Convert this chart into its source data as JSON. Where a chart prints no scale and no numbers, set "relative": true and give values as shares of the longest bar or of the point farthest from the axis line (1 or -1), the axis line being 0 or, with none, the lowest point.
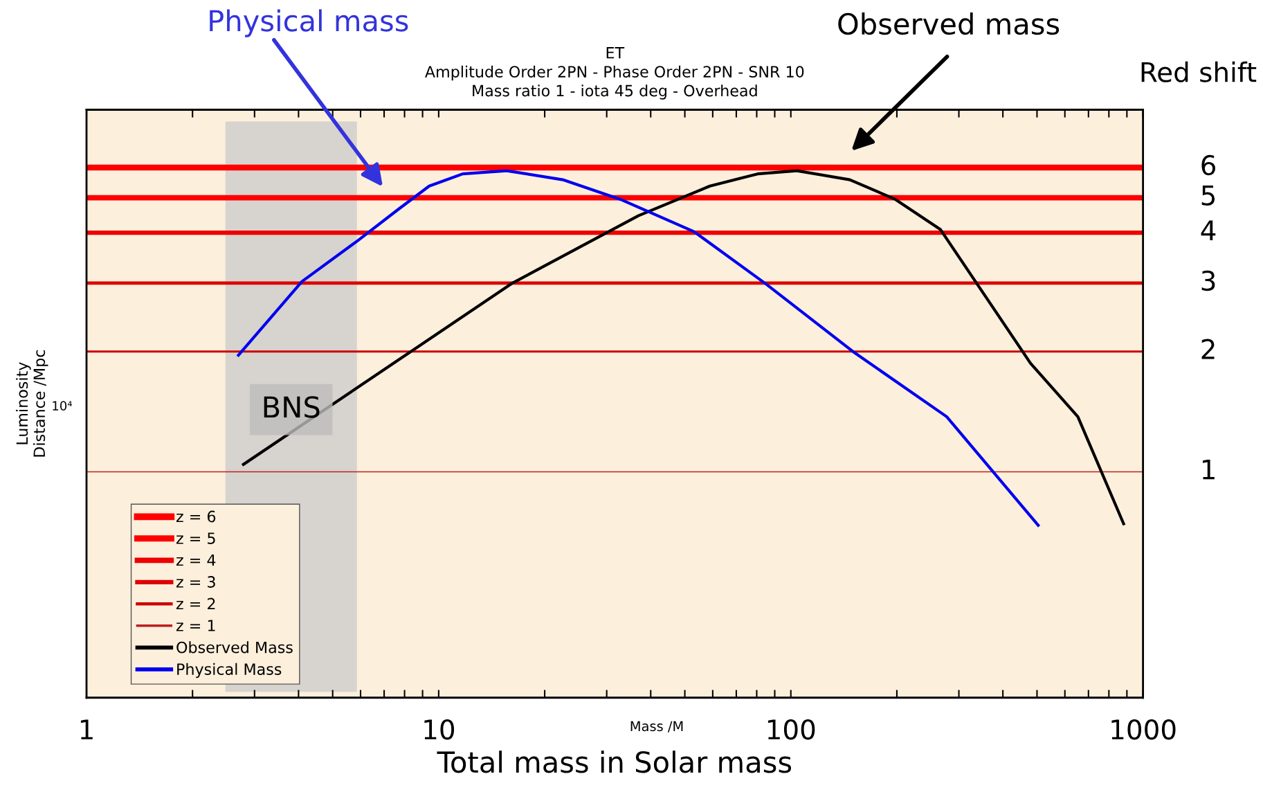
{
  "chart_data": {
    "type": "line",
    "relative": true,
    "title": "ET\nAmplitude Order 2PN - Phase Order 2PN - SNR 10\nMass ratio 1 - iota 45 deg - Overhead",
    "xlabel": "Total mass in Solar mass",
    "ylabel": "Luminosity\nDistance /Mpc",
    "y2label": "Red shift",
    "series": [
      {
        "name": "z = 6",
        "color": "#ff0000",
        "x": [
          1,
          1000
        ],
        "values": [
          1.0,
          1.0
        ]
      },
      {
        "name": "z = 5",
        "color": "#ff0000",
        "x": [
          1,
          1000
        ],
        "values": [
          0.943,
          0.943
        ]
      },
      {
        "name": "z = 4",
        "color": "#ee0000",
        "x": [
          1,
          1000
        ],
        "values": [
          0.877,
          0.877
        ]
      },
      {
        "name": "z = 3",
        "color": "#dd0000",
        "x": [
          1,
          1000
        ],
        "values": [
          0.782,
          0.782
        ]
      },
      {
        "name": "z = 2",
        "color": "#cc0000",
        "x": [
          1,
          1000
        ],
        "values": [
          0.653,
          0.653
        ]
      },
      {
        "name": "z = 1",
        "color": "#bb2020",
        "x": [
          1,
          1000
        ],
        "values": [
          0.426,
          0.426
        ]
      },
      {
        "name": "Observed Mass",
        "color": "#000000",
        "x": [
          2.79,
          8.05,
          16.1,
          36.9,
          58.9,
          80.5,
          104,
          147,
          198,
          266,
          479,
          653,
          881
        ],
        "values": [
          0.44,
          0.646,
          0.781,
          0.909,
          0.965,
          0.988,
          0.994,
          0.977,
          0.94,
          0.883,
          0.631,
          0.53,
          0.328
        ]
      },
      {
        "name": "Physical Mass",
        "color": "#0000ee",
        "x": [
          2.7,
          4.09,
          5.89,
          7.64,
          9.4,
          11.7,
          15.6,
          22.5,
          32.8,
          53.1,
          84.7,
          150,
          277,
          504
        ],
        "values": [
          0.646,
          0.785,
          0.862,
          0.92,
          0.965,
          0.988,
          0.994,
          0.977,
          0.94,
          0.879,
          0.781,
          0.653,
          0.53,
          0.325
        ]
      }
    ],
    "bands": [
      {
        "axis": "x",
        "from": 2.48,
        "to": 5.86,
        "label": "BNS",
        "color": "#c8c8c8"
      }
    ],
    "annotations": [
      "Physical mass",
      "Observed mass",
      "6",
      "5",
      "4",
      "3",
      "2",
      "1",
      "10⁴",
      "Mass /M"
    ],
    "log": "x",
    "xlim": [
      1,
      1000
    ],
    "xticks": [
      1,
      {
        "value": 2,
        "label": null
      },
      {
        "value": 3,
        "label": null
      },
      {
        "value": 4,
        "label": null
      },
      {
        "value": 5,
        "label": null
      },
      {
        "value": 6,
        "label": null
      },
      {
        "value": 7,
        "label": null
      },
      {
        "value": 8,
        "label": null
      },
      {
        "value": 9,
        "label": null
      },
      10,
      {
        "value": 20,
        "label": null
      },
      {
        "value": 30,
        "label": null
      },
      {
        "value": 40,
        "label": null
      },
      {
        "value": 50,
        "label": null
      },
      {
        "value": 60,
        "label": null
      },
      {
        "value": 70,
        "label": null
      },
      {
        "value": 80,
        "label": null
      },
      {
        "value": 90,
        "label": null
      },
      100,
      {
        "value": 200,
        "label": null
      },
      {
        "value": 300,
        "label": null
      },
      {
        "value": 400,
        "label": null
      },
      {
        "value": 500,
        "label": null
      },
      {
        "value": 600,
        "label": null
      },
      {
        "value": 700,
        "label": null
      },
      {
        "value": 800,
        "label": null
      },
      {
        "value": 900,
        "label": null
      },
      1000
    ],
    "grid": false,
    "legend": "bottom left",
    "line_style": "solid",
    "marker": "none"
  }
}
